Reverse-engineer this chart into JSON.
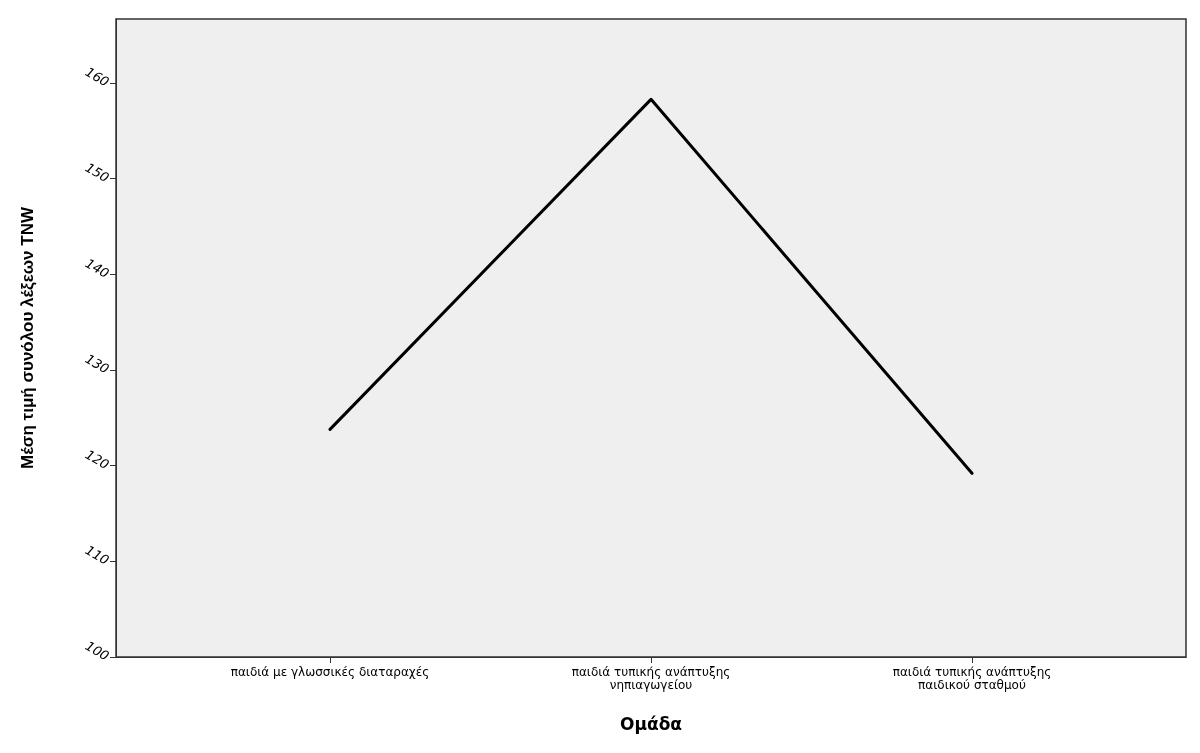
{
  "chart_data": {
    "type": "line",
    "xlabel": "Ομάδα",
    "ylabel": "Μέση τιμή συνόλου λέξεων TNW",
    "categories": [
      "παιδιά με γλωσσικές διαταραχές",
      "παιδιά τυπικής ανάπτυξης\nνηπιαγωγείου",
      "παιδιά τυπικής ανάπτυξης\nπαιδικού σταθμού"
    ],
    "values": [
      123.8,
      158.3,
      119.2
    ],
    "color": "#000000",
    "ylim": [
      100,
      166.7
    ],
    "yticks": [
      100,
      110,
      120,
      130,
      140,
      150,
      160
    ],
    "grid": false,
    "marker": "none",
    "line_style": "solid"
  }
}
